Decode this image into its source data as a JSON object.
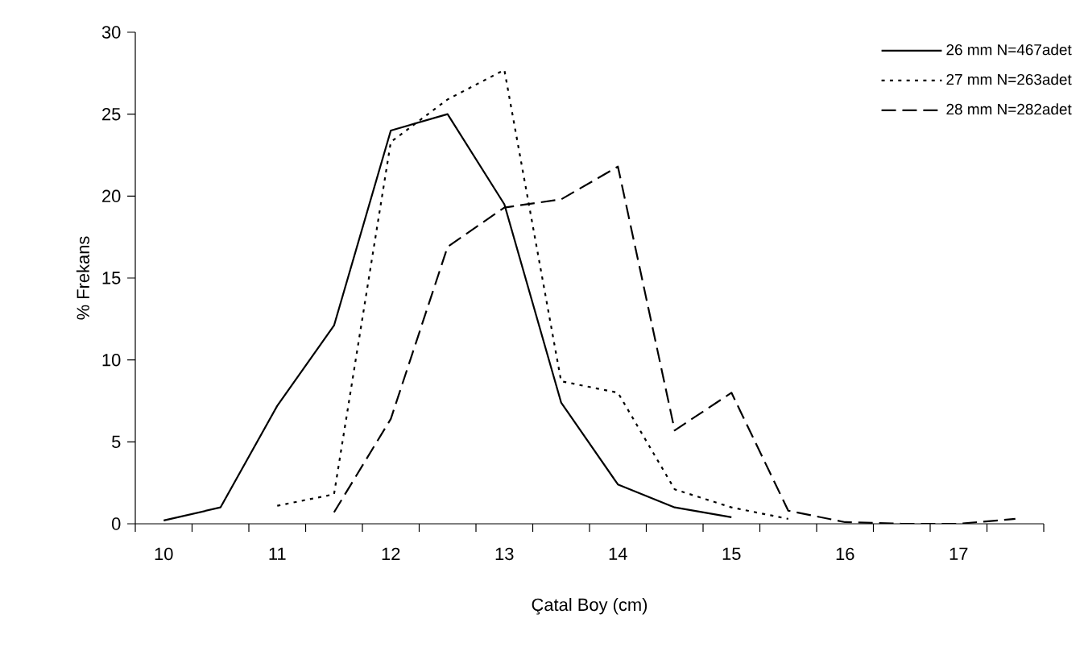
{
  "chart_data": {
    "type": "line",
    "xlabel": "Çatal Boy (cm)",
    "ylabel": "% Frekans",
    "categories": [
      "10",
      null,
      "11",
      null,
      "12",
      null,
      "13",
      null,
      "14",
      null,
      "15",
      null,
      "16",
      null,
      "17",
      null
    ],
    "ylim": [
      0,
      30
    ],
    "yticks": [
      0,
      5,
      10,
      15,
      20,
      25,
      30
    ],
    "grid": false,
    "legend": "top right",
    "marker": "none",
    "series": [
      {
        "name": "26 mm N=467adet",
        "color": "#000000",
        "line_style": "solid",
        "values": [
          0.2,
          1.0,
          7.2,
          12.1,
          24.0,
          25.0,
          19.5,
          7.4,
          2.4,
          1.0,
          0.4,
          null,
          null,
          null,
          null,
          null
        ]
      },
      {
        "name": "27 mm N=263adet",
        "color": "#000000",
        "line_style": "dotted",
        "values": [
          null,
          null,
          1.1,
          1.8,
          23.3,
          25.9,
          27.7,
          8.7,
          8.0,
          2.1,
          1.0,
          0.3,
          null,
          null,
          null,
          null
        ]
      },
      {
        "name": "28 mm N=282adet",
        "color": "#000000",
        "line_style": "dashed",
        "values": [
          null,
          null,
          null,
          0.7,
          6.4,
          16.9,
          19.3,
          19.8,
          21.8,
          5.7,
          8.0,
          0.8,
          0.1,
          0.0,
          0.0,
          0.3
        ]
      }
    ]
  }
}
